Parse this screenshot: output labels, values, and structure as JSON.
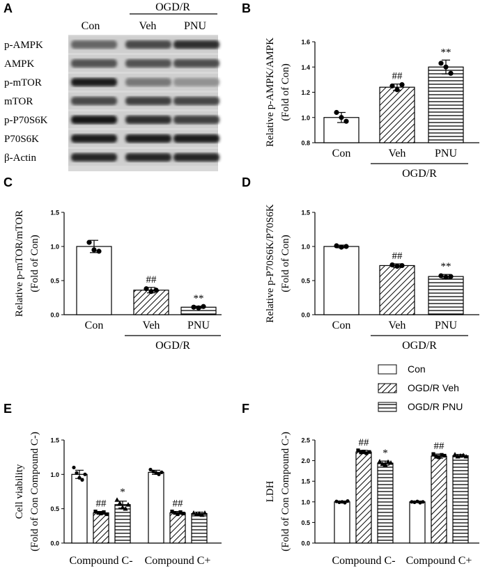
{
  "figure": {
    "panel_labels": [
      "A",
      "B",
      "C",
      "D",
      "E",
      "F"
    ]
  },
  "blot": {
    "group_header": "OGD/R",
    "lane_labels": [
      "Con",
      "Veh",
      "PNU"
    ],
    "rows": [
      "p-AMPK",
      "AMPK",
      "p-mTOR",
      "mTOR",
      "p-P70S6K",
      "P70S6K",
      "β-Actin"
    ],
    "band_intensity": [
      [
        0.55,
        0.7,
        0.85
      ],
      [
        0.65,
        0.65,
        0.68
      ],
      [
        0.95,
        0.45,
        0.3
      ],
      [
        0.7,
        0.75,
        0.72
      ],
      [
        1.0,
        0.85,
        0.75
      ],
      [
        0.95,
        0.95,
        0.95
      ],
      [
        0.9,
        0.9,
        0.9
      ]
    ]
  },
  "legend": {
    "items": [
      {
        "label": "Con",
        "pattern": "none"
      },
      {
        "label": "OGD/R Veh",
        "pattern": "diag"
      },
      {
        "label": "OGD/R PNU",
        "pattern": "horiz"
      }
    ]
  },
  "chart_data": [
    {
      "panel": "B",
      "type": "bar",
      "categories": [
        "Con",
        "Veh",
        "PNU"
      ],
      "group_label": "OGD/R",
      "values": [
        1.0,
        1.24,
        1.4
      ],
      "errors": [
        0.04,
        0.025,
        0.055
      ],
      "points": [
        [
          1.04,
          1.0,
          0.97
        ],
        [
          1.25,
          1.22,
          1.26
        ],
        [
          1.43,
          1.4,
          1.35
        ]
      ],
      "annotations": [
        "",
        "##",
        "**"
      ],
      "patterns": [
        "none",
        "diag",
        "horiz"
      ],
      "ylabel": "Relative p-AMPK/AMPK",
      "ylabel2": "(Fold of Con)",
      "ylim": [
        0.8,
        1.6
      ],
      "yticks": [
        0.8,
        1.0,
        1.2,
        1.4,
        1.6
      ],
      "ytick_labels": [
        "0.8",
        "1.0",
        "1.2",
        "1.4",
        "1.6"
      ]
    },
    {
      "panel": "C",
      "type": "bar",
      "categories": [
        "Con",
        "Veh",
        "PNU"
      ],
      "group_label": "OGD/R",
      "values": [
        1.0,
        0.36,
        0.11
      ],
      "errors": [
        0.09,
        0.04,
        0.015
      ],
      "points": [
        [
          1.06,
          0.95,
          0.93
        ],
        [
          0.38,
          0.34,
          0.36
        ],
        [
          0.11,
          0.1,
          0.12
        ]
      ],
      "annotations": [
        "",
        "##",
        "**"
      ],
      "patterns": [
        "none",
        "diag",
        "horiz"
      ],
      "ylabel": "Relative p-mTOR/mTOR",
      "ylabel2": "(Fold of Con)",
      "ylim": [
        0,
        1.5
      ],
      "yticks": [
        0,
        0.5,
        1.0,
        1.5
      ],
      "ytick_labels": [
        "0.0",
        "0.5",
        "1.0",
        "1.5"
      ]
    },
    {
      "panel": "D",
      "type": "bar",
      "categories": [
        "Con",
        "Veh",
        "PNU"
      ],
      "group_label": "OGD/R",
      "values": [
        1.0,
        0.72,
        0.56
      ],
      "errors": [
        0.02,
        0.025,
        0.03
      ],
      "points": [
        [
          1.01,
          0.99,
          1.0
        ],
        [
          0.73,
          0.71,
          0.72
        ],
        [
          0.57,
          0.55,
          0.56
        ]
      ],
      "annotations": [
        "",
        "##",
        "**"
      ],
      "patterns": [
        "none",
        "diag",
        "horiz"
      ],
      "ylabel": "Relative p-P70S6K/P70S6K",
      "ylabel2": "(Fold of Con)",
      "ylim": [
        0,
        1.5
      ],
      "yticks": [
        0,
        0.5,
        1.0,
        1.5
      ],
      "ytick_labels": [
        "0.0",
        "0.5",
        "1.0",
        "1.5"
      ]
    },
    {
      "panel": "E",
      "type": "bar",
      "groups": [
        "Compound C-",
        "Compound C+"
      ],
      "series": [
        {
          "name": "Con",
          "pattern": "none",
          "values": [
            1.0,
            1.03
          ],
          "errors": [
            0.06,
            0.03
          ],
          "points": [
            [
              1.1,
              1.02,
              0.95,
              0.92,
              1.0
            ],
            [
              1.07,
              1.04,
              1.02,
              1.0,
              1.03
            ]
          ],
          "annotations": [
            "",
            ""
          ]
        },
        {
          "name": "OGD/R Veh",
          "pattern": "diag",
          "values": [
            0.44,
            0.44
          ],
          "errors": [
            0.02,
            0.02
          ],
          "points": [
            [
              0.46,
              0.44,
              0.43,
              0.45,
              0.42
            ],
            [
              0.46,
              0.44,
              0.42,
              0.45,
              0.43
            ]
          ],
          "annotations": [
            "##",
            "##"
          ]
        },
        {
          "name": "OGD/R PNU",
          "pattern": "horiz",
          "values": [
            0.56,
            0.43
          ],
          "errors": [
            0.05,
            0.02
          ],
          "points": [
            [
              0.63,
              0.58,
              0.52,
              0.5,
              0.56
            ],
            [
              0.44,
              0.42,
              0.43,
              0.41,
              0.44
            ]
          ],
          "annotations": [
            "*",
            ""
          ]
        }
      ],
      "ylabel": "Cell viability",
      "ylabel2": "(Fold of Con Compound C-)",
      "ylim": [
        0,
        1.5
      ],
      "yticks": [
        0,
        0.5,
        1.0,
        1.5
      ],
      "ytick_labels": [
        "0.0",
        "0.5",
        "1.0",
        "1.5"
      ]
    },
    {
      "panel": "F",
      "type": "bar",
      "groups": [
        "Compound C-",
        "Compound C+"
      ],
      "series": [
        {
          "name": "Con",
          "pattern": "none",
          "values": [
            1.0,
            1.0
          ],
          "errors": [
            0.02,
            0.02
          ],
          "points": [
            [
              1.01,
              0.99,
              1.0,
              0.98,
              1.02
            ],
            [
              1.0,
              0.99,
              1.01,
              0.98,
              1.0
            ]
          ],
          "annotations": [
            "",
            ""
          ]
        },
        {
          "name": "OGD/R Veh",
          "pattern": "diag",
          "values": [
            2.21,
            2.11
          ],
          "errors": [
            0.04,
            0.05
          ],
          "points": [
            [
              2.25,
              2.2,
              2.22,
              2.18,
              2.21
            ],
            [
              2.16,
              2.1,
              2.08,
              2.14,
              2.12
            ]
          ],
          "annotations": [
            "##",
            "##"
          ]
        },
        {
          "name": "OGD/R PNU",
          "pattern": "horiz",
          "values": [
            1.94,
            2.12
          ],
          "errors": [
            0.05,
            0.03
          ],
          "points": [
            [
              1.98,
              1.92,
              1.9,
              1.97,
              1.95
            ],
            [
              2.15,
              2.1,
              2.12,
              2.13,
              2.1
            ]
          ],
          "annotations": [
            "*",
            ""
          ]
        }
      ],
      "ylabel": "LDH",
      "ylabel2": "(Fold of Con Compound C-)",
      "ylim": [
        0,
        2.5
      ],
      "yticks": [
        0,
        0.5,
        1.0,
        1.5,
        2.0,
        2.5
      ],
      "ytick_labels": [
        "0.0",
        "0.5",
        "1.0",
        "1.5",
        "2.0",
        "2.5"
      ]
    }
  ]
}
